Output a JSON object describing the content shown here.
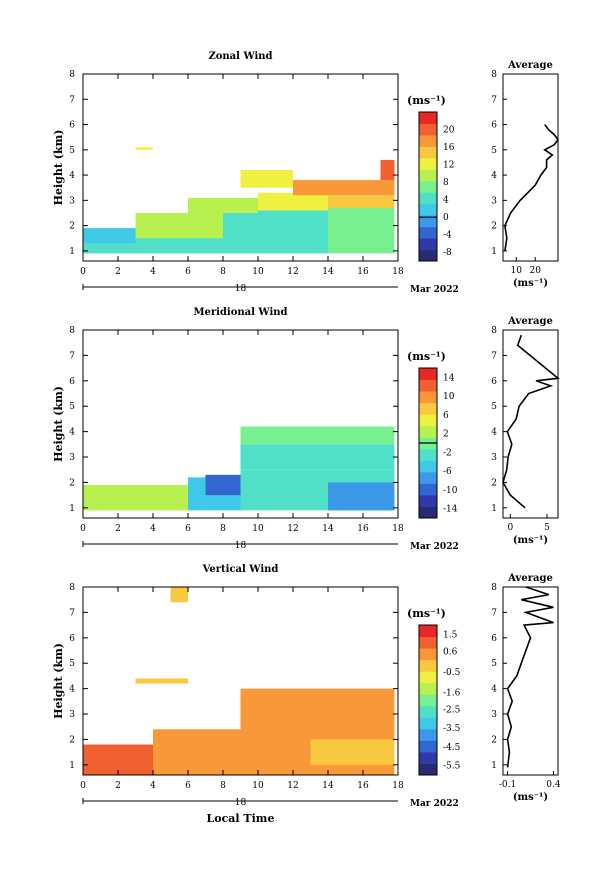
{
  "figure": {
    "x_axis_label": "Local Time",
    "date_day": "18",
    "month_year": "Mar 2022"
  },
  "chart_data": [
    {
      "type": "heatmap",
      "title": "Zonal Wind",
      "ylabel": "Height (km)",
      "xlim": [
        0,
        18
      ],
      "ylim": [
        0.6,
        8
      ],
      "x_ticks": [
        "0",
        "2",
        "4",
        "6",
        "8",
        "10",
        "12",
        "14",
        "16",
        "18"
      ],
      "y_ticks": [
        "1",
        "2",
        "3",
        "4",
        "5",
        "6",
        "7",
        "8"
      ],
      "colorbar": {
        "unit": "(ms⁻¹)",
        "min": -10,
        "max": 24,
        "ticks": [
          "20",
          "16",
          "12",
          "8",
          "4",
          "0",
          "-4",
          "-8"
        ],
        "contour_value": 0
      },
      "approx_field": [
        {
          "x": [
            0,
            8
          ],
          "y": [
            0.9,
            1.8
          ],
          "value": 4
        },
        {
          "x": [
            0,
            3
          ],
          "y": [
            1.3,
            1.9
          ],
          "value": 2
        },
        {
          "x": [
            3,
            8
          ],
          "y": [
            1.5,
            2.5
          ],
          "value": 9
        },
        {
          "x": [
            8,
            14
          ],
          "y": [
            0.9,
            2.8
          ],
          "value": 5
        },
        {
          "x": [
            14,
            17.8
          ],
          "y": [
            0.9,
            2.8
          ],
          "value": 6
        },
        {
          "x": [
            6,
            10
          ],
          "y": [
            2.5,
            3.1
          ],
          "value": 10
        },
        {
          "x": [
            10,
            14
          ],
          "y": [
            2.6,
            3.3
          ],
          "value": 12
        },
        {
          "x": [
            14,
            17.8
          ],
          "y": [
            2.7,
            3.2
          ],
          "value": 14
        },
        {
          "x": [
            12,
            17.8
          ],
          "y": [
            3.2,
            3.8
          ],
          "value": 17
        },
        {
          "x": [
            17,
            17.8
          ],
          "y": [
            3.8,
            4.6
          ],
          "value": 20
        },
        {
          "x": [
            9,
            12
          ],
          "y": [
            3.5,
            4.2
          ],
          "value": 13
        },
        {
          "x": [
            3,
            4
          ],
          "y": [
            5.0,
            5.1
          ],
          "value": 13
        }
      ]
    },
    {
      "type": "heatmap",
      "title": "Meridional Wind",
      "ylabel": "Height (km)",
      "xlim": [
        0,
        18
      ],
      "ylim": [
        0.6,
        8
      ],
      "x_ticks": [
        "0",
        "2",
        "4",
        "6",
        "8",
        "10",
        "12",
        "14",
        "16",
        "18"
      ],
      "y_ticks": [
        "1",
        "2",
        "3",
        "4",
        "5",
        "6",
        "7",
        "8"
      ],
      "colorbar": {
        "unit": "(ms⁻¹)",
        "min": -16,
        "max": 16,
        "ticks": [
          "14",
          "10",
          "6",
          "2",
          "-2",
          "-6",
          "-10",
          "-14"
        ],
        "contour_value": 0
      },
      "approx_field": [
        {
          "x": [
            0,
            6
          ],
          "y": [
            0.9,
            1.9
          ],
          "value": 3
        },
        {
          "x": [
            6,
            9
          ],
          "y": [
            0.9,
            2.2
          ],
          "value": -4
        },
        {
          "x": [
            7,
            9
          ],
          "y": [
            1.5,
            2.3
          ],
          "value": -9
        },
        {
          "x": [
            9,
            17.8
          ],
          "y": [
            0.9,
            2.5
          ],
          "value": -3
        },
        {
          "x": [
            14,
            17.8
          ],
          "y": [
            0.9,
            2.0
          ],
          "value": -7
        },
        {
          "x": [
            9,
            17.8
          ],
          "y": [
            2.5,
            3.5
          ],
          "value": -2
        },
        {
          "x": [
            9,
            17.8
          ],
          "y": [
            3.5,
            4.2
          ],
          "value": -1
        }
      ]
    },
    {
      "type": "heatmap",
      "title": "Vertical Wind",
      "ylabel": "Height (km)",
      "xlim": [
        0,
        18
      ],
      "ylim": [
        0.6,
        8
      ],
      "x_ticks": [
        "0",
        "2",
        "4",
        "6",
        "8",
        "10",
        "12",
        "14",
        "16",
        "18"
      ],
      "y_ticks": [
        "1",
        "2",
        "3",
        "4",
        "5",
        "6",
        "7",
        "8"
      ],
      "colorbar": {
        "unit": "(ms⁻¹)",
        "min": -6.0,
        "max": 2.0,
        "ticks": [
          "1.5",
          "0.6",
          "-0.5",
          "-1.6",
          "-2.5",
          "-3.5",
          "-4.5",
          "-5.5"
        ]
      },
      "approx_field": [
        {
          "x": [
            0,
            4
          ],
          "y": [
            0.6,
            1.8
          ],
          "value": 0.9
        },
        {
          "x": [
            4,
            9
          ],
          "y": [
            0.6,
            2.4
          ],
          "value": 0.2
        },
        {
          "x": [
            9,
            17.8
          ],
          "y": [
            0.6,
            4.0
          ],
          "value": 0.4
        },
        {
          "x": [
            13,
            17.8
          ],
          "y": [
            1.0,
            2.0
          ],
          "value": -0.4
        },
        {
          "x": [
            3,
            6
          ],
          "y": [
            4.2,
            4.4
          ],
          "value": 0.1
        },
        {
          "x": [
            5,
            6
          ],
          "y": [
            7.4,
            8.0
          ],
          "value": -0.2
        }
      ]
    },
    {
      "type": "line",
      "title": "Average",
      "xlabel": "(ms⁻¹)",
      "xlim": [
        3,
        32
      ],
      "ylim": [
        0.6,
        8
      ],
      "x_ticks": [
        "10",
        "20"
      ],
      "y_ticks": [
        "1",
        "2",
        "3",
        "4",
        "5",
        "6",
        "7",
        "8"
      ],
      "points": [
        [
          4,
          1.0
        ],
        [
          5,
          1.5
        ],
        [
          4,
          2.0
        ],
        [
          7,
          2.5
        ],
        [
          12,
          3.0
        ],
        [
          16,
          3.3
        ],
        [
          20,
          3.6
        ],
        [
          23,
          4.0
        ],
        [
          26,
          4.3
        ],
        [
          26,
          4.6
        ],
        [
          29,
          4.8
        ],
        [
          25,
          5.0
        ],
        [
          30,
          5.2
        ],
        [
          32,
          5.4
        ],
        [
          30,
          5.6
        ],
        [
          27,
          5.8
        ],
        [
          25,
          6.0
        ]
      ]
    },
    {
      "type": "line",
      "title": "Average",
      "xlabel": "(ms⁻¹)",
      "xlim": [
        -1,
        6.5
      ],
      "ylim": [
        0.6,
        8
      ],
      "x_ticks": [
        "0",
        "5"
      ],
      "y_ticks": [
        "1",
        "2",
        "3",
        "4",
        "5",
        "6",
        "7",
        "8"
      ],
      "points": [
        [
          2,
          1.0
        ],
        [
          0,
          1.5
        ],
        [
          -1,
          2.0
        ],
        [
          -0.5,
          2.5
        ],
        [
          -0.3,
          3.0
        ],
        [
          0.2,
          3.5
        ],
        [
          -0.4,
          4.0
        ],
        [
          0.8,
          4.5
        ],
        [
          1.2,
          5.0
        ],
        [
          2.5,
          5.5
        ],
        [
          5.5,
          5.8
        ],
        [
          3.5,
          6.0
        ],
        [
          6.5,
          6.1
        ],
        [
          1,
          7.4
        ],
        [
          1.5,
          7.8
        ]
      ]
    },
    {
      "type": "line",
      "title": "Average",
      "xlabel": "(ms⁻¹)",
      "xlim": [
        -0.15,
        0.45
      ],
      "ylim": [
        0.6,
        8
      ],
      "x_ticks": [
        "-0.1",
        "0.4"
      ],
      "y_ticks": [
        "1",
        "2",
        "3",
        "4",
        "5",
        "6",
        "7",
        "8"
      ],
      "points": [
        [
          -0.1,
          0.9
        ],
        [
          -0.08,
          1.5
        ],
        [
          -0.1,
          2.0
        ],
        [
          -0.06,
          2.5
        ],
        [
          -0.1,
          3.0
        ],
        [
          -0.05,
          3.5
        ],
        [
          -0.1,
          4.0
        ],
        [
          0.0,
          4.5
        ],
        [
          0.05,
          5.0
        ],
        [
          0.1,
          5.5
        ],
        [
          0.15,
          6.0
        ],
        [
          0.08,
          6.5
        ],
        [
          0.4,
          6.6
        ],
        [
          0.1,
          7.0
        ],
        [
          0.4,
          7.2
        ],
        [
          0.05,
          7.5
        ],
        [
          0.35,
          7.7
        ],
        [
          0.1,
          8.0
        ]
      ]
    }
  ],
  "colors": {
    "scale": [
      "#2a2a70",
      "#2f3aa8",
      "#3266d0",
      "#3c98e8",
      "#40c8e8",
      "#50e0c8",
      "#78f090",
      "#b8f050",
      "#f0f040",
      "#f8c840",
      "#f89838",
      "#f06030",
      "#e82828"
    ],
    "outline": "#000000"
  }
}
